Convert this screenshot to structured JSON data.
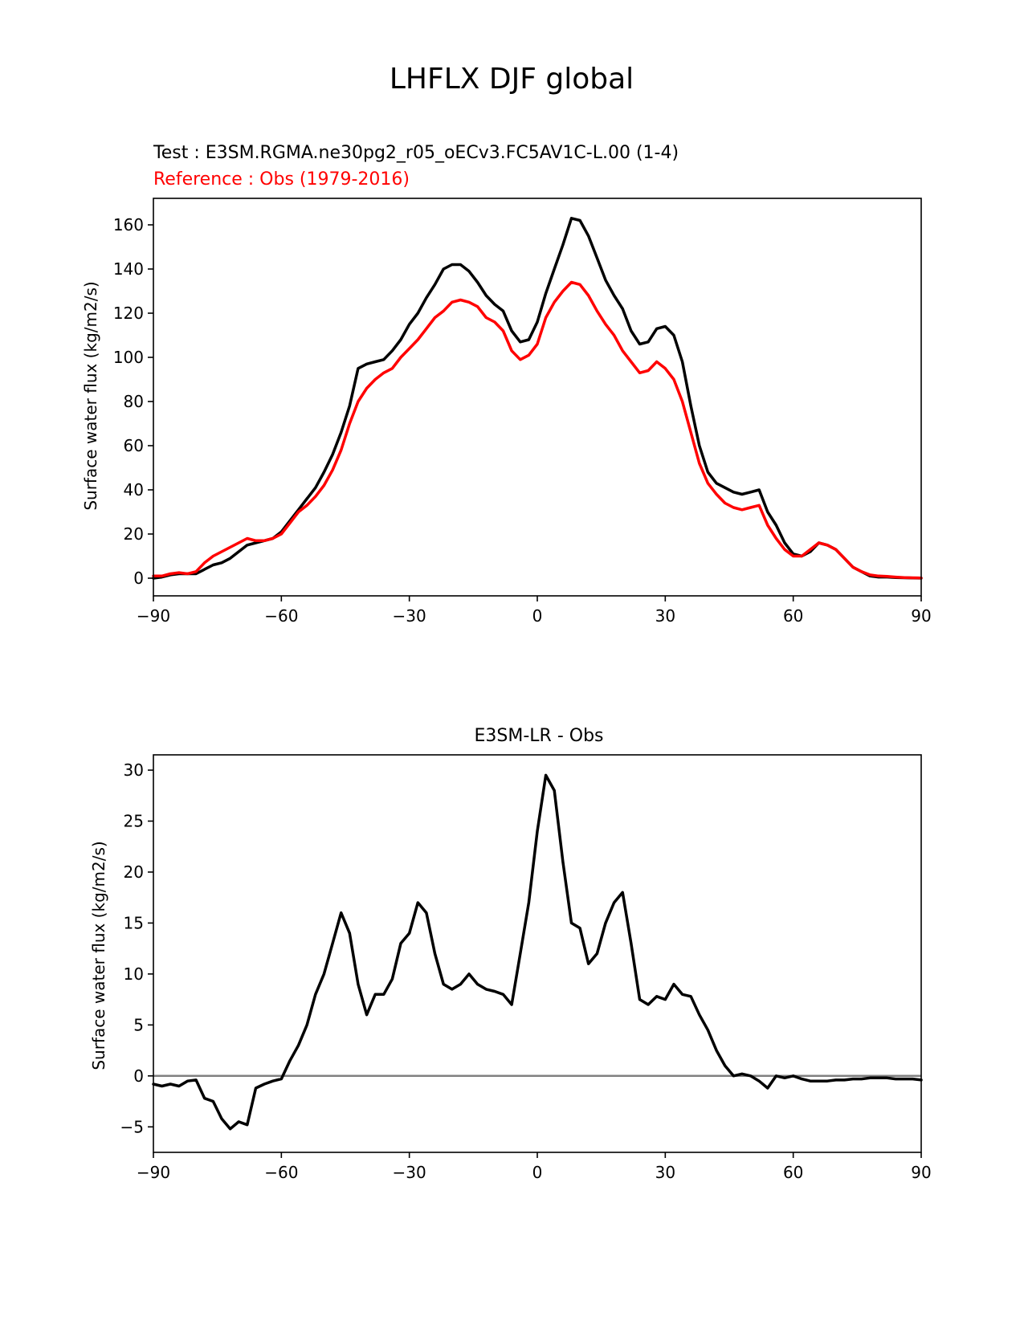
{
  "figure_title": "LHFLX DJF global",
  "chart_data": [
    {
      "type": "line",
      "subtitle_test": "Test : E3SM.RGMA.ne30pg2_r05_oECv3.FC5AV1C-L.00 (1-4)",
      "subtitle_reference": "Reference : Obs (1979-2016)",
      "xlabel": "",
      "ylabel": "Surface water flux (kg/m2/s)",
      "xlim": [
        -90,
        90
      ],
      "ylim": [
        -8,
        172
      ],
      "xticks": [
        -90,
        -60,
        -30,
        0,
        30,
        60,
        90
      ],
      "xtick_labels": [
        "−90",
        "−60",
        "−30",
        "0",
        "30",
        "60",
        "90"
      ],
      "yticks": [
        0,
        20,
        40,
        60,
        80,
        100,
        120,
        140,
        160
      ],
      "ytick_labels": [
        "0",
        "20",
        "40",
        "60",
        "80",
        "100",
        "120",
        "140",
        "160"
      ],
      "grid": false,
      "series": [
        {
          "name": "Test",
          "color": "#000000",
          "x": [
            -90,
            -88,
            -86,
            -84,
            -82,
            -80,
            -78,
            -76,
            -74,
            -72,
            -70,
            -68,
            -66,
            -64,
            -62,
            -60,
            -58,
            -56,
            -54,
            -52,
            -50,
            -48,
            -46,
            -44,
            -42,
            -40,
            -38,
            -36,
            -34,
            -32,
            -30,
            -28,
            -26,
            -24,
            -22,
            -20,
            -18,
            -16,
            -14,
            -12,
            -10,
            -8,
            -6,
            -4,
            -2,
            0,
            2,
            4,
            6,
            8,
            10,
            12,
            14,
            16,
            18,
            20,
            22,
            24,
            26,
            28,
            30,
            32,
            34,
            36,
            38,
            40,
            42,
            44,
            46,
            48,
            50,
            52,
            54,
            56,
            58,
            60,
            62,
            64,
            66,
            68,
            70,
            72,
            74,
            76,
            78,
            80,
            82,
            84,
            86,
            88,
            90
          ],
          "y": [
            0,
            0.5,
            1.5,
            2,
            2,
            2,
            4,
            6,
            7,
            9,
            12,
            15,
            16,
            17,
            18,
            21,
            26,
            31,
            36,
            41,
            48,
            56,
            66,
            78,
            95,
            97,
            98,
            99,
            103,
            108,
            115,
            120,
            127,
            133,
            140,
            142,
            142,
            139,
            134,
            128,
            124,
            121,
            112,
            107,
            108,
            116,
            129,
            140,
            151,
            163,
            162,
            155,
            145,
            135,
            128,
            122,
            112,
            106,
            107,
            113,
            114,
            110,
            98,
            78,
            60,
            48,
            43,
            41,
            39,
            38,
            39,
            40,
            30,
            24,
            16,
            11,
            10,
            12,
            16,
            15,
            13,
            9,
            5,
            3,
            1,
            0.5,
            0.5,
            0.3,
            0.2,
            0.1,
            0
          ]
        },
        {
          "name": "Reference",
          "color": "#ff0000",
          "x": [
            -90,
            -88,
            -86,
            -84,
            -82,
            -80,
            -78,
            -76,
            -74,
            -72,
            -70,
            -68,
            -66,
            -64,
            -62,
            -60,
            -58,
            -56,
            -54,
            -52,
            -50,
            -48,
            -46,
            -44,
            -42,
            -40,
            -38,
            -36,
            -34,
            -32,
            -30,
            -28,
            -26,
            -24,
            -22,
            -20,
            -18,
            -16,
            -14,
            -12,
            -10,
            -8,
            -6,
            -4,
            -2,
            0,
            2,
            4,
            6,
            8,
            10,
            12,
            14,
            16,
            18,
            20,
            22,
            24,
            26,
            28,
            30,
            32,
            34,
            36,
            38,
            40,
            42,
            44,
            46,
            48,
            50,
            52,
            54,
            56,
            58,
            60,
            62,
            64,
            66,
            68,
            70,
            72,
            74,
            76,
            78,
            80,
            82,
            84,
            86,
            88,
            90
          ],
          "y": [
            1,
            1,
            2,
            2.5,
            2,
            3,
            7,
            10,
            12,
            14,
            16,
            18,
            17,
            17,
            18,
            20,
            25,
            30,
            33,
            37,
            42,
            49,
            58,
            70,
            80,
            86,
            90,
            93,
            95,
            100,
            104,
            108,
            113,
            118,
            121,
            125,
            126,
            125,
            123,
            118,
            116,
            112,
            103,
            99,
            101,
            106,
            118,
            125,
            130,
            134,
            133,
            128,
            121,
            115,
            110,
            103,
            98,
            93,
            94,
            98,
            95,
            90,
            80,
            66,
            52,
            43,
            38,
            34,
            32,
            31,
            32,
            33,
            24,
            18,
            13,
            10,
            10,
            13,
            16,
            15,
            13,
            9,
            5,
            3,
            1.5,
            1,
            0.8,
            0.5,
            0.3,
            0.2,
            0.1
          ]
        }
      ]
    },
    {
      "type": "line",
      "title": "E3SM-LR - Obs",
      "xlabel": "",
      "ylabel": "Surface water flux (kg/m2/s)",
      "xlim": [
        -90,
        90
      ],
      "ylim": [
        -7.5,
        31.5
      ],
      "xticks": [
        -90,
        -60,
        -30,
        0,
        30,
        60,
        90
      ],
      "xtick_labels": [
        "−90",
        "−60",
        "−30",
        "0",
        "30",
        "60",
        "90"
      ],
      "yticks": [
        -5,
        0,
        5,
        10,
        15,
        20,
        25,
        30
      ],
      "ytick_labels": [
        "−5",
        "0",
        "5",
        "10",
        "15",
        "20",
        "25",
        "30"
      ],
      "grid": false,
      "zero_line": true,
      "zero_line_color": "#808080",
      "series": [
        {
          "name": "E3SM-LR - Obs",
          "color": "#000000",
          "x": [
            -90,
            -88,
            -86,
            -84,
            -82,
            -80,
            -78,
            -76,
            -74,
            -72,
            -70,
            -68,
            -66,
            -64,
            -62,
            -60,
            -58,
            -56,
            -54,
            -52,
            -50,
            -48,
            -46,
            -44,
            -42,
            -40,
            -38,
            -36,
            -34,
            -32,
            -30,
            -28,
            -26,
            -24,
            -22,
            -20,
            -18,
            -16,
            -14,
            -12,
            -10,
            -8,
            -6,
            -4,
            -2,
            0,
            2,
            4,
            6,
            8,
            10,
            12,
            14,
            16,
            18,
            20,
            22,
            24,
            26,
            28,
            30,
            32,
            34,
            36,
            38,
            40,
            42,
            44,
            46,
            48,
            50,
            52,
            54,
            56,
            58,
            60,
            62,
            64,
            66,
            68,
            70,
            72,
            74,
            76,
            78,
            80,
            82,
            84,
            86,
            88,
            90
          ],
          "y": [
            -0.8,
            -1,
            -0.8,
            -1,
            -0.5,
            -0.4,
            -2.2,
            -2.5,
            -4.2,
            -5.2,
            -4.5,
            -4.8,
            -1.2,
            -0.8,
            -0.5,
            -0.3,
            1.5,
            3,
            5,
            8,
            10,
            13,
            16,
            14,
            9,
            6,
            8,
            8,
            9.5,
            13,
            14,
            17,
            16,
            12,
            9,
            8.5,
            9,
            10,
            9,
            8.5,
            8.3,
            8,
            7,
            12,
            17,
            24,
            29.5,
            28,
            21,
            15,
            14.5,
            11,
            12,
            15,
            17,
            18,
            13,
            7.5,
            7,
            7.8,
            7.5,
            9,
            8,
            7.8,
            6,
            4.5,
            2.5,
            1,
            0,
            0.2,
            0,
            -0.5,
            -1.2,
            0,
            -0.2,
            0,
            -0.3,
            -0.5,
            -0.5,
            -0.5,
            -0.4,
            -0.4,
            -0.3,
            -0.3,
            -0.2,
            -0.2,
            -0.2,
            -0.3,
            -0.3,
            -0.3,
            -0.4
          ]
        }
      ]
    }
  ]
}
